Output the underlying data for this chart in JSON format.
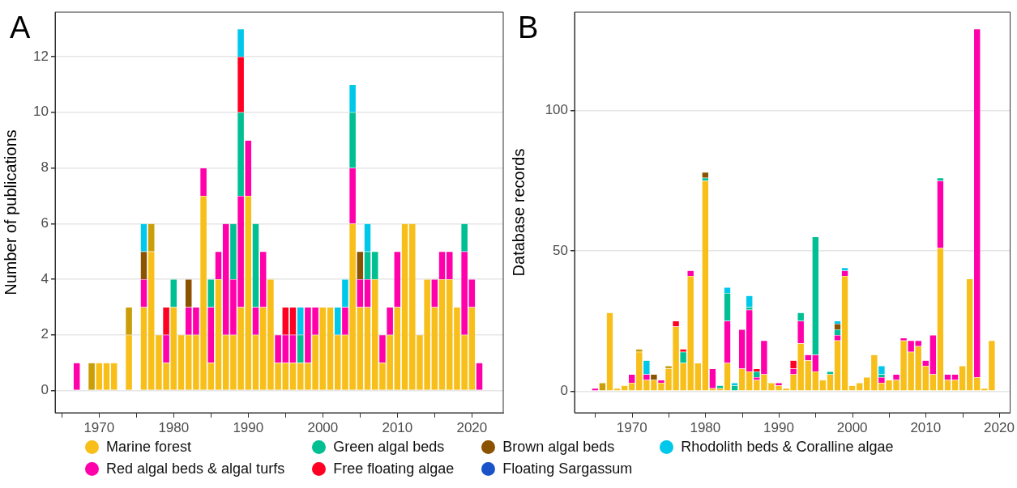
{
  "chart_data": [
    {
      "type": "bar",
      "title": "A",
      "ylabel": "Number of publications",
      "stacked": true,
      "grid": "y",
      "legend": "bottom",
      "x": [
        1967,
        1968,
        1969,
        1970,
        1971,
        1972,
        1973,
        1974,
        1975,
        1976,
        1977,
        1978,
        1979,
        1980,
        1981,
        1982,
        1983,
        1984,
        1985,
        1986,
        1987,
        1988,
        1989,
        1990,
        1991,
        1992,
        1993,
        1994,
        1995,
        1996,
        1997,
        1998,
        1999,
        2000,
        2001,
        2002,
        2003,
        2004,
        2005,
        2006,
        2007,
        2008,
        2009,
        2010,
        2011,
        2012,
        2013,
        2014,
        2015,
        2016,
        2017,
        2018,
        2019,
        2020,
        2021
      ],
      "xlim": [
        1964.1,
        2024.2
      ],
      "xticks": [
        {
          "value": 1965,
          "label": null
        },
        1970,
        {
          "value": 1975,
          "label": null
        },
        1980,
        {
          "value": 1985,
          "label": null
        },
        1990,
        {
          "value": 1995,
          "label": null
        },
        2000,
        {
          "value": 2005,
          "label": null
        },
        2010,
        {
          "value": 2015,
          "label": null
        },
        2020
      ],
      "ylim": [
        -0.8,
        13.6
      ],
      "yticks": [
        0,
        2,
        4,
        6,
        8,
        10,
        12
      ],
      "series": [
        {
          "name": "Marine forest",
          "color": "#f8bf1a",
          "values": [
            null,
            null,
            null,
            1,
            1,
            1,
            null,
            2,
            null,
            3,
            5,
            2,
            1,
            3,
            2,
            2,
            2,
            7,
            1,
            4,
            2,
            2,
            3,
            7,
            2,
            3,
            4,
            1,
            1,
            1,
            1,
            1,
            2,
            3,
            3,
            2,
            2,
            6,
            3,
            3,
            4,
            1,
            2,
            3,
            6,
            6,
            2,
            4,
            3,
            4,
            4,
            3,
            2,
            3,
            null
          ]
        },
        {
          "color": "#c99e08",
          "values": [
            null,
            null,
            1,
            null,
            null,
            null,
            null,
            1,
            null,
            null,
            1,
            null,
            null,
            null,
            null,
            null,
            null,
            null,
            null,
            null,
            null,
            null,
            null,
            null,
            null,
            null,
            null,
            null,
            null,
            null,
            null,
            null,
            null,
            null,
            null,
            null,
            null,
            null,
            null,
            null,
            null,
            null,
            null,
            null,
            null,
            null,
            null,
            null,
            null,
            null,
            null,
            null,
            null,
            null,
            null
          ]
        },
        {
          "name": "Red algal beds & algal turfs",
          "color": "#ff00aa",
          "values": [
            1,
            null,
            null,
            null,
            null,
            null,
            null,
            null,
            null,
            1,
            null,
            null,
            1,
            null,
            null,
            1,
            1,
            1,
            2,
            1,
            4,
            2,
            4,
            2,
            1,
            2,
            null,
            1,
            1,
            1,
            null,
            2,
            1,
            null,
            null,
            null,
            1,
            2,
            1,
            1,
            null,
            1,
            1,
            2,
            null,
            null,
            null,
            null,
            1,
            1,
            1,
            null,
            3,
            1,
            1
          ]
        },
        {
          "name": "Green algal beds",
          "color": "#00bf93",
          "values": [
            null,
            null,
            null,
            null,
            null,
            null,
            null,
            null,
            null,
            null,
            null,
            null,
            null,
            1,
            null,
            null,
            null,
            null,
            1,
            null,
            null,
            2,
            3,
            null,
            3,
            null,
            null,
            null,
            null,
            null,
            1,
            null,
            null,
            null,
            null,
            null,
            null,
            2,
            null,
            1,
            1,
            null,
            null,
            null,
            null,
            null,
            null,
            null,
            null,
            null,
            null,
            null,
            1,
            null,
            null
          ]
        },
        {
          "name": "Free floating algae",
          "color": "#ff0022",
          "values": [
            null,
            null,
            null,
            null,
            null,
            null,
            null,
            null,
            null,
            null,
            null,
            null,
            1,
            null,
            null,
            null,
            null,
            null,
            null,
            null,
            null,
            null,
            2,
            null,
            null,
            null,
            null,
            null,
            1,
            1,
            null,
            null,
            null,
            null,
            null,
            null,
            null,
            null,
            null,
            null,
            null,
            null,
            null,
            null,
            null,
            null,
            null,
            null,
            null,
            null,
            null,
            null,
            null,
            null,
            null
          ]
        },
        {
          "name": "Brown algal beds",
          "color": "#8b5300",
          "values": [
            null,
            null,
            null,
            null,
            null,
            null,
            null,
            null,
            null,
            1,
            null,
            null,
            null,
            null,
            null,
            1,
            null,
            null,
            null,
            null,
            null,
            null,
            null,
            null,
            null,
            null,
            null,
            null,
            null,
            null,
            null,
            null,
            null,
            null,
            null,
            null,
            null,
            null,
            1,
            null,
            null,
            null,
            null,
            null,
            null,
            null,
            null,
            null,
            null,
            null,
            null,
            null,
            null,
            null,
            null
          ]
        },
        {
          "name": "Floating Sargassum",
          "color": "#1a52c8",
          "values": [
            null,
            null,
            null,
            null,
            null,
            null,
            null,
            null,
            null,
            null,
            null,
            null,
            null,
            null,
            null,
            null,
            null,
            null,
            null,
            null,
            null,
            null,
            null,
            null,
            null,
            null,
            null,
            null,
            null,
            null,
            null,
            null,
            null,
            null,
            null,
            null,
            null,
            null,
            null,
            null,
            null,
            null,
            null,
            null,
            null,
            null,
            null,
            null,
            null,
            null,
            null,
            null,
            null,
            null,
            null
          ]
        },
        {
          "name": "Rhodolith beds & Coralline algae",
          "color": "#00c8ea",
          "values": [
            null,
            null,
            null,
            null,
            null,
            null,
            null,
            null,
            null,
            1,
            null,
            null,
            null,
            null,
            null,
            null,
            null,
            null,
            null,
            null,
            null,
            null,
            1,
            null,
            null,
            null,
            null,
            null,
            null,
            null,
            1,
            null,
            null,
            null,
            null,
            1,
            1,
            1,
            null,
            1,
            null,
            null,
            null,
            null,
            null,
            null,
            null,
            null,
            null,
            null,
            null,
            null,
            null,
            null,
            null
          ]
        }
      ]
    },
    {
      "type": "bar",
      "title": "B",
      "ylabel": "Database records",
      "stacked": true,
      "grid": "y",
      "x": [
        1965,
        1966,
        1967,
        1968,
        1969,
        1970,
        1971,
        1972,
        1973,
        1974,
        1975,
        1976,
        1977,
        1978,
        1979,
        1980,
        1981,
        1982,
        1983,
        1984,
        1985,
        1986,
        1987,
        1988,
        1989,
        1990,
        1991,
        1992,
        1993,
        1994,
        1995,
        1996,
        1997,
        1998,
        1999,
        2000,
        2001,
        2002,
        2003,
        2004,
        2005,
        2006,
        2007,
        2008,
        2009,
        2010,
        2011,
        2012,
        2013,
        2014,
        2015,
        2016,
        2017,
        2018,
        2019
      ],
      "xlim": [
        1962.2,
        2021.5
      ],
      "xticks": [
        {
          "value": 1965,
          "label": null
        },
        1970,
        {
          "value": 1975,
          "label": null
        },
        1980,
        {
          "value": 1985,
          "label": null
        },
        1990,
        {
          "value": 1995,
          "label": null
        },
        2000,
        {
          "value": 2005,
          "label": null
        },
        2010,
        {
          "value": 2015,
          "label": null
        },
        2020
      ],
      "ylim": [
        -7.7,
        135
      ],
      "yticks": [
        0,
        50,
        100
      ],
      "series": [
        {
          "color": "#f8bf1a",
          "values": [
            null,
            null,
            28,
            1,
            2,
            3,
            14,
            4,
            4,
            3,
            8,
            23,
            10,
            41,
            10,
            75,
            1,
            1,
            10,
            null,
            8,
            7,
            4,
            6,
            3,
            2,
            1,
            6,
            17,
            11,
            7,
            4,
            6,
            18,
            41,
            2,
            3,
            5,
            13,
            3,
            4,
            4,
            18,
            14,
            16,
            9,
            6,
            51,
            4,
            4,
            9,
            40,
            5,
            1,
            18
          ]
        },
        {
          "color": "#c99e08",
          "values": [
            null,
            3,
            null,
            null,
            null,
            null,
            1,
            null,
            null,
            null,
            1,
            null,
            null,
            null,
            null,
            null,
            null,
            null,
            null,
            null,
            null,
            null,
            null,
            null,
            null,
            null,
            null,
            null,
            null,
            null,
            null,
            null,
            null,
            null,
            null,
            null,
            null,
            null,
            null,
            null,
            null,
            null,
            null,
            null,
            null,
            null,
            null,
            null,
            null,
            null,
            null,
            null,
            null,
            null,
            null
          ]
        },
        {
          "color": "#ff00aa",
          "values": [
            1,
            null,
            null,
            null,
            null,
            3,
            null,
            2,
            null,
            1,
            null,
            null,
            null,
            2,
            null,
            null,
            7,
            null,
            15,
            null,
            14,
            22,
            1,
            12,
            null,
            1,
            null,
            2,
            8,
            2,
            6,
            null,
            null,
            2,
            2,
            null,
            null,
            null,
            null,
            2,
            null,
            2,
            1,
            4,
            2,
            2,
            14,
            24,
            2,
            2,
            null,
            null,
            124,
            null,
            null
          ]
        },
        {
          "color": "#00bf93",
          "values": [
            null,
            null,
            null,
            null,
            null,
            null,
            null,
            null,
            null,
            null,
            null,
            null,
            4,
            null,
            null,
            1,
            null,
            1,
            10,
            2,
            null,
            1,
            2,
            null,
            null,
            null,
            null,
            null,
            3,
            null,
            42,
            null,
            1,
            2,
            null,
            null,
            null,
            null,
            null,
            1,
            null,
            null,
            null,
            null,
            null,
            null,
            null,
            1,
            null,
            null,
            null,
            null,
            null,
            null,
            null
          ]
        },
        {
          "color": "#ff0022",
          "values": [
            null,
            null,
            null,
            null,
            null,
            null,
            null,
            null,
            null,
            null,
            null,
            2,
            1,
            null,
            null,
            null,
            null,
            null,
            null,
            null,
            null,
            null,
            1,
            null,
            null,
            null,
            null,
            3,
            null,
            null,
            null,
            null,
            null,
            null,
            null,
            null,
            null,
            null,
            null,
            null,
            null,
            null,
            null,
            null,
            null,
            null,
            null,
            null,
            null,
            null,
            null,
            null,
            null,
            null,
            null
          ]
        },
        {
          "color": "#8b5300",
          "values": [
            null,
            null,
            null,
            null,
            null,
            null,
            null,
            null,
            2,
            null,
            null,
            null,
            null,
            null,
            null,
            2,
            null,
            null,
            null,
            null,
            null,
            null,
            null,
            null,
            null,
            null,
            null,
            null,
            null,
            null,
            null,
            null,
            null,
            2,
            null,
            null,
            null,
            null,
            null,
            null,
            null,
            null,
            null,
            null,
            null,
            null,
            null,
            null,
            null,
            null,
            null,
            null,
            null,
            null,
            null
          ]
        },
        {
          "color": "#00c8ea",
          "values": [
            null,
            null,
            null,
            null,
            null,
            null,
            null,
            5,
            null,
            null,
            null,
            null,
            null,
            null,
            null,
            null,
            null,
            null,
            2,
            1,
            null,
            4,
            null,
            null,
            null,
            null,
            null,
            null,
            null,
            null,
            null,
            null,
            null,
            1,
            1,
            null,
            null,
            null,
            null,
            3,
            null,
            null,
            null,
            null,
            null,
            null,
            null,
            null,
            null,
            null,
            null,
            null,
            null,
            null,
            null
          ]
        }
      ]
    }
  ]
}
